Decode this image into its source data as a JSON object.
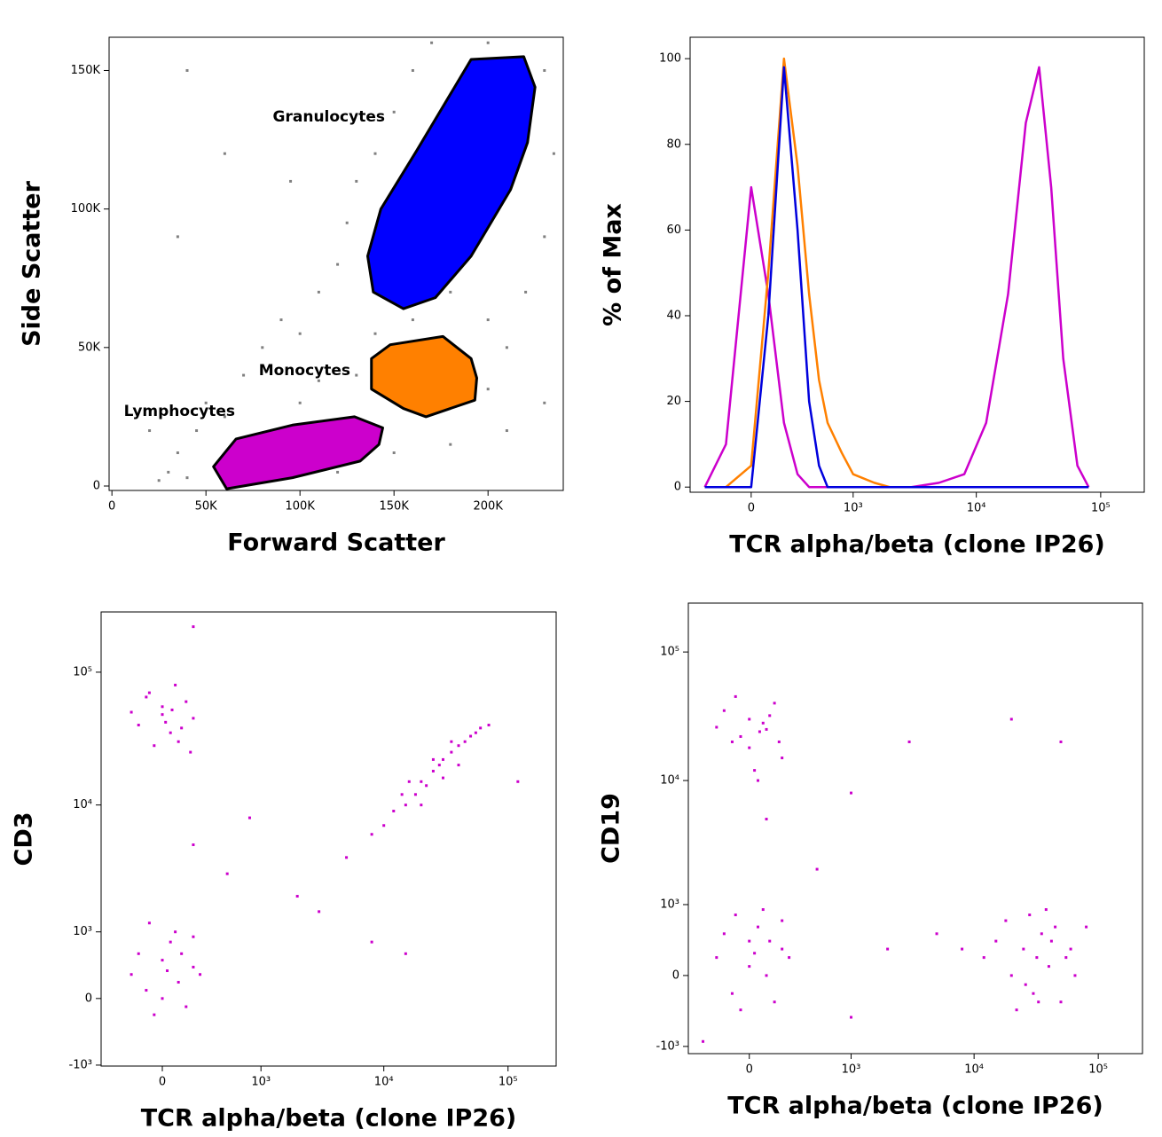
{
  "chart_data": [
    {
      "type": "scatter",
      "xlabel": "Forward Scatter",
      "ylabel": "Side Scatter",
      "xlim": [
        -1500,
        240000
      ],
      "ylim": [
        -1600,
        162000
      ],
      "xticks": [
        0,
        {
          "value": 50000,
          "label": "50K"
        },
        {
          "value": 100000,
          "label": "100K"
        },
        {
          "value": 150000,
          "label": "150K"
        },
        {
          "value": 200000,
          "label": "200K"
        }
      ],
      "yticks": [
        0,
        {
          "value": 50000,
          "label": "50K"
        },
        {
          "value": 100000,
          "label": "100K"
        },
        {
          "value": 150000,
          "label": "150K"
        }
      ],
      "color": "#808080",
      "x": [
        30000,
        35000,
        40000,
        45000,
        50000,
        60000,
        70000,
        80000,
        90000,
        100000,
        110000,
        120000,
        125000,
        130000,
        140000,
        150000,
        160000,
        170000,
        200000,
        230000,
        235000,
        230000,
        220000,
        210000,
        200000,
        210000,
        230000,
        180000,
        150000,
        120000,
        100000,
        130000,
        140000,
        160000,
        180000,
        200000,
        35000,
        60000,
        40000,
        20000,
        25000,
        110000,
        95000,
        150000
      ],
      "y": [
        5000,
        12000,
        3000,
        20000,
        30000,
        25000,
        40000,
        50000,
        60000,
        55000,
        70000,
        80000,
        95000,
        110000,
        120000,
        135000,
        150000,
        160000,
        160000,
        150000,
        120000,
        90000,
        70000,
        50000,
        35000,
        20000,
        30000,
        15000,
        12000,
        5000,
        30000,
        40000,
        55000,
        60000,
        70000,
        60000,
        90000,
        120000,
        150000,
        20000,
        2000,
        38000,
        110000,
        90000
      ],
      "gates": [
        {
          "name": "Granulocytes",
          "color": "#0000ff",
          "x": [
            136000,
            143000,
            162000,
            191000,
            219000,
            225000,
            221000,
            212000,
            191000,
            172000,
            155000,
            139000
          ],
          "y": [
            83000,
            100000,
            121000,
            154000,
            155000,
            144000,
            124000,
            107000,
            83000,
            68000,
            64000,
            70000
          ]
        },
        {
          "name": "Monocytes",
          "color": "#ff8000",
          "x": [
            138000,
            148000,
            176000,
            191000,
            194000,
            193000,
            167000,
            155000,
            138000
          ],
          "y": [
            46000,
            51000,
            54000,
            46000,
            39000,
            31000,
            25000,
            28000,
            35000
          ]
        },
        {
          "name": "Lymphocytes",
          "color": "#cc00cc",
          "x": [
            54000,
            66000,
            96000,
            129000,
            144000,
            142000,
            132000,
            96000,
            61000
          ],
          "y": [
            7000,
            17000,
            22000,
            25000,
            21000,
            15000,
            9000,
            3000,
            -1000
          ]
        }
      ]
    },
    {
      "type": "line",
      "scale": "biexponential",
      "xlabel": "TCR alpha/beta (clone IP26)",
      "ylabel": "% of Max",
      "xlim": [
        -430,
        224000
      ],
      "ylim": [
        -1.2,
        105
      ],
      "xticks": [
        0,
        {
          "value": 1000,
          "label": "10³"
        },
        {
          "value": 10000,
          "label": "10⁴"
        },
        {
          "value": 100000,
          "label": "10⁵"
        }
      ],
      "yticks": [
        0,
        20,
        40,
        60,
        80,
        100
      ],
      "x": [
        -300,
        -150,
        0,
        100,
        200,
        300,
        400,
        500,
        600,
        800,
        1000,
        1500,
        2000,
        3000,
        5000,
        8000,
        12000,
        18000,
        25000,
        32000,
        40000,
        50000,
        65000,
        80000
      ],
      "series": [
        {
          "color": "#cc00cc",
          "values": [
            0,
            10,
            70,
            45,
            15,
            3,
            0,
            0,
            0,
            0,
            0,
            0,
            0,
            0,
            1,
            3,
            15,
            45,
            85,
            98,
            70,
            30,
            5,
            0
          ]
        },
        {
          "color": "#ff8000",
          "values": [
            0,
            0,
            5,
            50,
            100,
            75,
            45,
            25,
            15,
            8,
            3,
            1,
            0,
            0,
            0,
            0,
            0,
            0,
            0,
            0,
            0,
            0,
            0,
            0
          ]
        },
        {
          "color": "#0000dd",
          "values": [
            0,
            0,
            0,
            40,
            98,
            60,
            20,
            5,
            0,
            0,
            0,
            0,
            0,
            0,
            0,
            0,
            0,
            0,
            0,
            0,
            0,
            0,
            0,
            0
          ]
        }
      ]
    },
    {
      "type": "scatter",
      "xscale": "biexponential",
      "yscale": "biexponential",
      "xlabel": "TCR alpha/beta (clone IP26)",
      "ylabel": "CD3",
      "xlim": [
        -460,
        244000
      ],
      "ylim": [
        -1020,
        284000
      ],
      "color": "#cc00cc",
      "xticks": [
        0,
        {
          "value": 1000,
          "label": "10³"
        },
        {
          "value": 10000,
          "label": "10⁴"
        },
        {
          "value": 100000,
          "label": "10⁵"
        }
      ],
      "yticks": [
        {
          "value": -1000,
          "label": "-10³"
        },
        0,
        {
          "value": 1000,
          "label": "10³"
        },
        {
          "value": 10000,
          "label": "10⁴"
        },
        {
          "value": 100000,
          "label": "10⁵"
        }
      ],
      "x": [
        -150,
        0,
        100,
        200,
        -80,
        50,
        150,
        -200,
        20,
        120,
        -50,
        80,
        180,
        -100,
        0,
        60,
        -200,
        0,
        100,
        200,
        -100,
        50,
        150,
        0,
        -150,
        250,
        80,
        -50,
        120,
        30,
        200,
        -80,
        10000,
        12000,
        15000,
        18000,
        20000,
        22000,
        25000,
        28000,
        30000,
        35000,
        40000,
        45000,
        50000,
        55000,
        60000,
        70000,
        14000,
        20000,
        30000,
        25000,
        8000,
        40000,
        16000,
        35000,
        200,
        500,
        2000,
        5000,
        3000,
        200,
        8000,
        800,
        120000,
        15000
      ],
      "y": [
        40000,
        55000,
        30000,
        45000,
        70000,
        35000,
        60000,
        50000,
        42000,
        38000,
        28000,
        80000,
        25000,
        65000,
        48000,
        52000,
        300,
        500,
        200,
        400,
        100,
        800,
        -100,
        0,
        600,
        300,
        1000,
        -200,
        600,
        350,
        900,
        1200,
        7000,
        9000,
        10000,
        12000,
        15000,
        14000,
        18000,
        20000,
        22000,
        25000,
        28000,
        30000,
        33000,
        35000,
        38000,
        40000,
        12000,
        10000,
        16000,
        22000,
        6000,
        20000,
        15000,
        30000,
        5000,
        3000,
        2000,
        4000,
        1500,
        220000,
        800,
        8000,
        15000,
        600
      ]
    },
    {
      "type": "scatter",
      "xscale": "biexponential",
      "yscale": "biexponential",
      "xlabel": "TCR alpha/beta (clone IP26)",
      "ylabel": "CD19",
      "xlim": [
        -430,
        227000
      ],
      "ylim": [
        -1160,
        240000
      ],
      "color": "#cc00cc",
      "xticks": [
        0,
        {
          "value": 1000,
          "label": "10³"
        },
        {
          "value": 10000,
          "label": "10⁴"
        },
        {
          "value": 100000,
          "label": "10⁵"
        }
      ],
      "yticks": [
        {
          "value": -1000,
          "label": "-10³"
        },
        0,
        {
          "value": 1000,
          "label": "10³"
        },
        {
          "value": 10000,
          "label": "10⁴"
        },
        {
          "value": 100000,
          "label": "10⁵"
        }
      ],
      "x": [
        -100,
        0,
        100,
        200,
        -150,
        50,
        150,
        -50,
        80,
        0,
        -200,
        120,
        30,
        -80,
        60,
        180,
        -200,
        0,
        100,
        200,
        -100,
        50,
        150,
        0,
        -150,
        250,
        80,
        -50,
        120,
        30,
        200,
        -80,
        12000,
        15000,
        20000,
        25000,
        30000,
        35000,
        40000,
        45000,
        50000,
        60000,
        28000,
        32000,
        22000,
        38000,
        26000,
        42000,
        18000,
        33000,
        55000,
        65000,
        8000,
        5000,
        1000,
        3000,
        20000,
        50000,
        500,
        2000,
        100,
        80000,
        -300,
        1000
      ],
      "y": [
        20000,
        30000,
        25000,
        15000,
        35000,
        10000,
        40000,
        22000,
        28000,
        18000,
        26000,
        32000,
        12000,
        45000,
        24000,
        20000,
        200,
        400,
        0,
        300,
        -200,
        600,
        -300,
        100,
        500,
        200,
        900,
        -400,
        400,
        250,
        700,
        800,
        200,
        400,
        0,
        300,
        -200,
        500,
        100,
        600,
        -300,
        300,
        800,
        200,
        -400,
        900,
        -100,
        400,
        700,
        -300,
        200,
        0,
        300,
        500,
        8000,
        20000,
        30000,
        20000,
        2000,
        300,
        5000,
        600,
        -900,
        -500
      ]
    }
  ]
}
